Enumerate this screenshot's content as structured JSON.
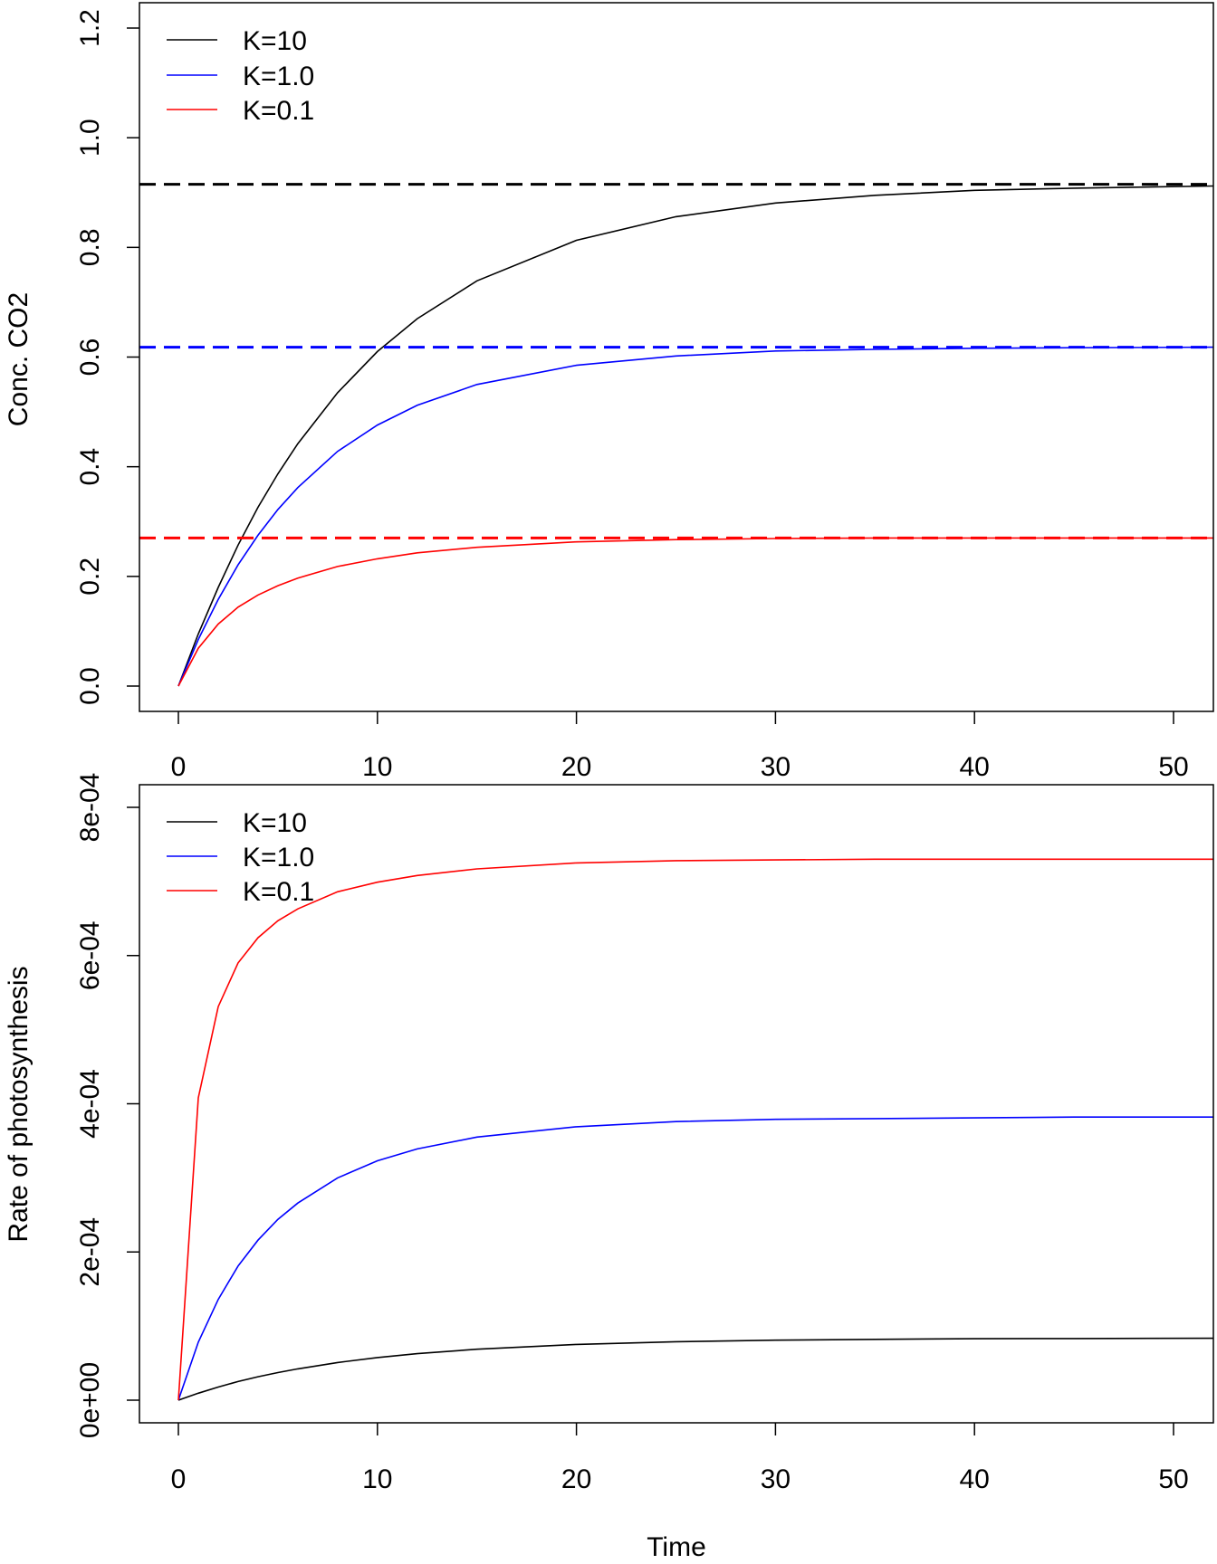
{
  "chart_data": [
    {
      "type": "line",
      "title": "",
      "xlabel": "",
      "ylabel": "Conc. CO2",
      "xlim": [
        -2,
        52
      ],
      "ylim": [
        0,
        1.2
      ],
      "xticks": [
        "0",
        "10",
        "20",
        "30",
        "40",
        "50"
      ],
      "yticks": [
        "0.0",
        "0.2",
        "0.4",
        "0.6",
        "0.8",
        "1.0",
        "1.2"
      ],
      "legend": {
        "placement": "top-left",
        "entries": [
          "K=10",
          "K=1.0",
          "K=0.1"
        ]
      },
      "x": [
        0,
        1,
        2,
        3,
        4,
        5,
        6,
        8,
        10,
        12,
        15,
        20,
        25,
        30,
        35,
        40,
        45,
        52
      ],
      "series": [
        {
          "name": "K=10",
          "color": "#000000",
          "values": [
            0,
            0.095,
            0.18,
            0.257,
            0.326,
            0.387,
            0.442,
            0.535,
            0.61,
            0.67,
            0.739,
            0.813,
            0.856,
            0.881,
            0.895,
            0.904,
            0.908,
            0.912
          ],
          "equilibrium": 0.915
        },
        {
          "name": "K=1.0",
          "color": "#0000ff",
          "values": [
            0,
            0.085,
            0.158,
            0.221,
            0.275,
            0.322,
            0.362,
            0.428,
            0.476,
            0.512,
            0.55,
            0.585,
            0.602,
            0.611,
            0.614,
            0.616,
            0.617,
            0.618
          ],
          "equilibrium": 0.618
        },
        {
          "name": "K=0.1",
          "color": "#ff0000",
          "values": [
            0,
            0.069,
            0.113,
            0.144,
            0.166,
            0.183,
            0.197,
            0.218,
            0.232,
            0.243,
            0.253,
            0.263,
            0.267,
            0.269,
            0.27,
            0.27,
            0.27,
            0.27
          ],
          "equilibrium": 0.27
        }
      ]
    },
    {
      "type": "line",
      "title": "",
      "xlabel": "Time",
      "ylabel": "Rate of photosynthesis",
      "xlim": [
        -2,
        52
      ],
      "ylim": [
        0,
        0.0008
      ],
      "xticks": [
        "0",
        "10",
        "20",
        "30",
        "40",
        "50"
      ],
      "yticks": [
        "0e+00",
        "2e-04",
        "4e-04",
        "6e-04",
        "8e-04"
      ],
      "legend": {
        "placement": "top-left",
        "entries": [
          "K=10",
          "K=1.0",
          "K=0.1"
        ]
      },
      "x": [
        0,
        1,
        2,
        3,
        4,
        5,
        6,
        8,
        10,
        12,
        15,
        20,
        25,
        30,
        35,
        40,
        45,
        52
      ],
      "series": [
        {
          "name": "K=10",
          "color": "#000000",
          "values": [
            0,
            9.4e-06,
            1.77e-05,
            2.51e-05,
            3.16e-05,
            3.73e-05,
            4.23e-05,
            5.08e-05,
            5.75e-05,
            6.28e-05,
            6.88e-05,
            7.52e-05,
            7.89e-05,
            8.1e-05,
            8.21e-05,
            8.29e-05,
            8.32e-05,
            8.36e-05
          ]
        },
        {
          "name": "K=1.0",
          "color": "#0000ff",
          "values": [
            0,
            7.83e-05,
            0.000136,
            0.000181,
            0.000216,
            0.000244,
            0.000266,
            0.0003,
            0.000323,
            0.000339,
            0.000355,
            0.000369,
            0.000376,
            0.000379,
            0.00038,
            0.000381,
            0.000382,
            0.000382
          ]
        },
        {
          "name": "K=0.1",
          "color": "#ff0000",
          "values": [
            0,
            0.000408,
            0.000531,
            0.00059,
            0.000624,
            0.000647,
            0.000663,
            0.000686,
            0.000699,
            0.000708,
            0.000717,
            0.000725,
            0.000728,
            0.000729,
            0.00073,
            0.00073,
            0.00073,
            0.00073
          ]
        }
      ]
    }
  ]
}
